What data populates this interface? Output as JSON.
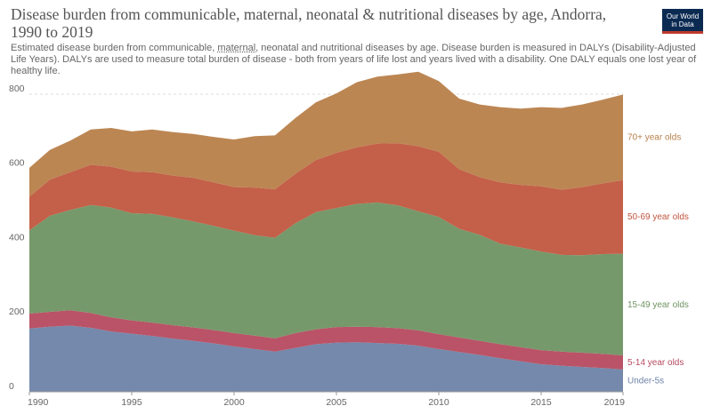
{
  "title": "Disease burden from communicable, maternal, neonatal & nutritional diseases by age, Andorra, 1990 to 2019",
  "subtitle_parts": [
    "Estimated disease burden from communicable, ",
    "maternal",
    ", neonatal and nutritional diseases by age. Disease burden is measured in DALYs (Disability-Adjusted Life Years). DALYs are used to measure total burden of disease - both from years of life lost and years lived with a disability. One DALY equals one lost year of healthy life."
  ],
  "logo": {
    "line1": "Our World",
    "line2": "in Data"
  },
  "colors": {
    "under5": "#6d83a8",
    "age5_14": "#b64a5f",
    "age15_49": "#6f9463",
    "age50_69": "#c1563f",
    "age70": "#b8804a",
    "grid": "#dddddd"
  },
  "chart_data": {
    "type": "area",
    "stacked": true,
    "x": [
      1990,
      1991,
      1992,
      1993,
      1994,
      1995,
      1996,
      1997,
      1998,
      1999,
      2000,
      2001,
      2002,
      2003,
      2004,
      2005,
      2006,
      2007,
      2008,
      2009,
      2010,
      2011,
      2012,
      2013,
      2014,
      2015,
      2016,
      2017,
      2018,
      2019
    ],
    "xlim": [
      1990,
      2019
    ],
    "ylim": [
      0,
      850
    ],
    "xticks": [
      "1990",
      "1995",
      "2000",
      "2005",
      "2010",
      "2015",
      "2019"
    ],
    "yticks": [
      "0",
      "200",
      "400",
      "600",
      "800"
    ],
    "grid": true,
    "series": [
      {
        "name": "Under-5s",
        "color_key": "under5",
        "values": [
          170,
          175,
          178,
          172,
          162,
          156,
          150,
          143,
          137,
          130,
          122,
          115,
          108,
          118,
          128,
          132,
          133,
          131,
          129,
          124,
          115,
          107,
          99,
          90,
          82,
          74,
          70,
          67,
          64,
          60
        ]
      },
      {
        "name": "5-14 year olds",
        "color_key": "age5_14",
        "values": [
          40,
          40,
          41,
          40,
          38,
          36,
          36,
          36,
          36,
          36,
          36,
          36,
          36,
          40,
          40,
          42,
          42,
          43,
          42,
          41,
          40,
          39,
          38,
          38,
          38,
          38,
          38,
          38,
          38,
          38
        ]
      },
      {
        "name": "15-49 year olds",
        "color_key": "age15_49",
        "values": [
          224,
          258,
          270,
          290,
          295,
          288,
          292,
          290,
          285,
          280,
          275,
          270,
          270,
          295,
          315,
          320,
          330,
          335,
          330,
          320,
          315,
          292,
          285,
          270,
          268,
          265,
          260,
          262,
          268,
          273
        ]
      },
      {
        "name": "50-69 year olds",
        "color_key": "age50_69",
        "values": [
          90,
          97,
          101,
          108,
          110,
          112,
          112,
          112,
          117,
          117,
          117,
          128,
          130,
          133,
          140,
          148,
          152,
          158,
          167,
          175,
          175,
          160,
          155,
          165,
          168,
          175,
          175,
          183,
          190,
          198
        ]
      },
      {
        "name": "70+ year olds",
        "color_key": "age70",
        "values": [
          78,
          80,
          85,
          95,
          104,
          108,
          115,
          117,
          118,
          122,
          128,
          138,
          145,
          150,
          155,
          160,
          175,
          180,
          185,
          200,
          190,
          190,
          195,
          202,
          205,
          213,
          220,
          222,
          225,
          230
        ]
      }
    ],
    "legend_placement": "right, inline labels"
  }
}
